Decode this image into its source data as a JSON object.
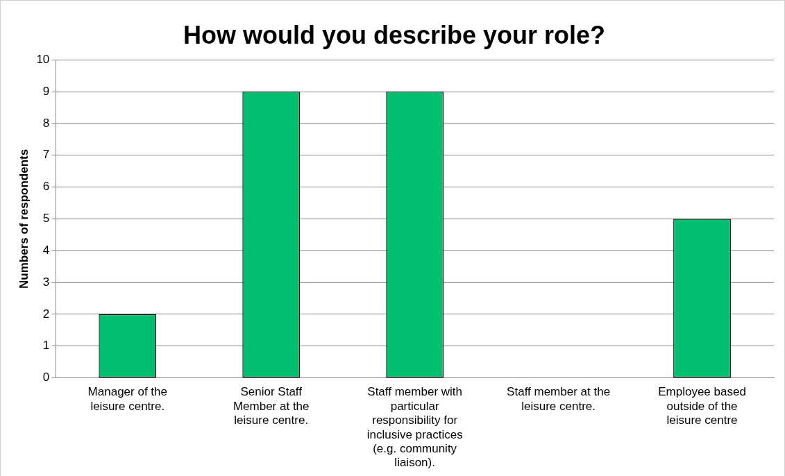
{
  "chart_data": {
    "type": "bar",
    "title": "How would you describe your role?",
    "ylabel": "Numbers of respondents",
    "categories": [
      "Manager of the leisure centre.",
      "Senior Staff Member at the leisure centre.",
      "Staff member with particular responsibility for inclusive practices (e.g. community liaison).",
      "Staff member at the leisure centre.",
      "Employee based outside of the leisure centre"
    ],
    "values": [
      2,
      9,
      9,
      0,
      5
    ],
    "color": "#00c070",
    "ylim": [
      0,
      10
    ],
    "yticks": [
      0,
      1,
      2,
      3,
      4,
      5,
      6,
      7,
      8,
      9,
      10
    ],
    "grid": "y",
    "legend": false
  }
}
